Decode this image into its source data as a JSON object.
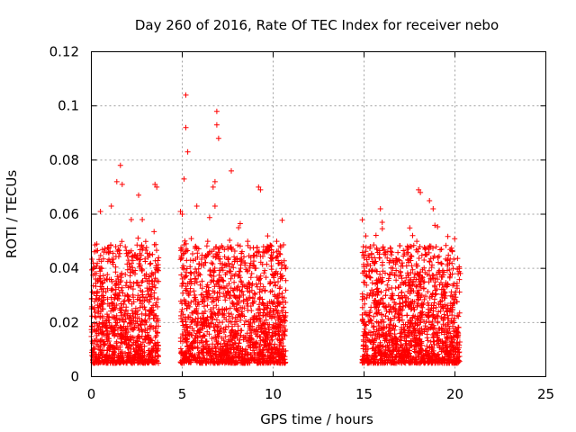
{
  "chart_data": {
    "type": "scatter",
    "title": "Day 260 of 2016, Rate Of TEC Index for receiver nebo",
    "xlabel": "GPS time / hours",
    "ylabel": "ROTI / TECUs",
    "xlim": [
      0,
      25
    ],
    "ylim": [
      0,
      0.12
    ],
    "x_ticks": [
      0,
      5,
      10,
      15,
      20,
      25
    ],
    "x_tick_labels": [
      "0",
      "5",
      "10",
      "15",
      "20",
      "25"
    ],
    "y_ticks": [
      0,
      0.02,
      0.04,
      0.06,
      0.08,
      0.1,
      0.12
    ],
    "y_tick_labels": [
      "0",
      "0.02",
      "0.04",
      "0.06",
      "0.08",
      "0.1",
      "0.12"
    ],
    "grid": true,
    "marker": "+",
    "color": "#ff0000",
    "series": [
      {
        "name": "ROTI",
        "coverage_hours": [
          [
            0,
            3.7
          ],
          [
            4.9,
            10.7
          ],
          [
            14.9,
            20.3
          ]
        ],
        "x": [
          0.3,
          0.5,
          0.7,
          1.1,
          1.4,
          1.6,
          1.7,
          2.2,
          2.6,
          2.8,
          3.5,
          3.6,
          4.9,
          5.0,
          5.1,
          5.2,
          5.2,
          5.3,
          5.5,
          5.8,
          6.4,
          6.7,
          6.8,
          6.8,
          6.9,
          6.9,
          7.0,
          7.7,
          8.1,
          8.6,
          9.2,
          9.3,
          9.7,
          9.9,
          10.2,
          10.5,
          15.0,
          15.1,
          15.3,
          15.9,
          16.0,
          16.5,
          17.1,
          17.6,
          17.9,
          18.0,
          18.1,
          18.4,
          18.6,
          18.8,
          19.7,
          19.9,
          20.1
        ],
        "y": [
          0.049,
          0.061,
          0.046,
          0.063,
          0.072,
          0.078,
          0.071,
          0.058,
          0.067,
          0.058,
          0.071,
          0.07,
          0.061,
          0.06,
          0.073,
          0.092,
          0.104,
          0.083,
          0.051,
          0.063,
          0.05,
          0.07,
          0.063,
          0.072,
          0.093,
          0.098,
          0.088,
          0.076,
          0.055,
          0.05,
          0.07,
          0.069,
          0.052,
          0.045,
          0.05,
          0.02,
          0.045,
          0.052,
          0.039,
          0.062,
          0.057,
          0.045,
          0.042,
          0.048,
          0.05,
          0.069,
          0.068,
          0.045,
          0.065,
          0.062,
          0.042,
          0.04,
          0.015
        ],
        "typical_range": [
          0.005,
          0.04
        ]
      }
    ]
  }
}
